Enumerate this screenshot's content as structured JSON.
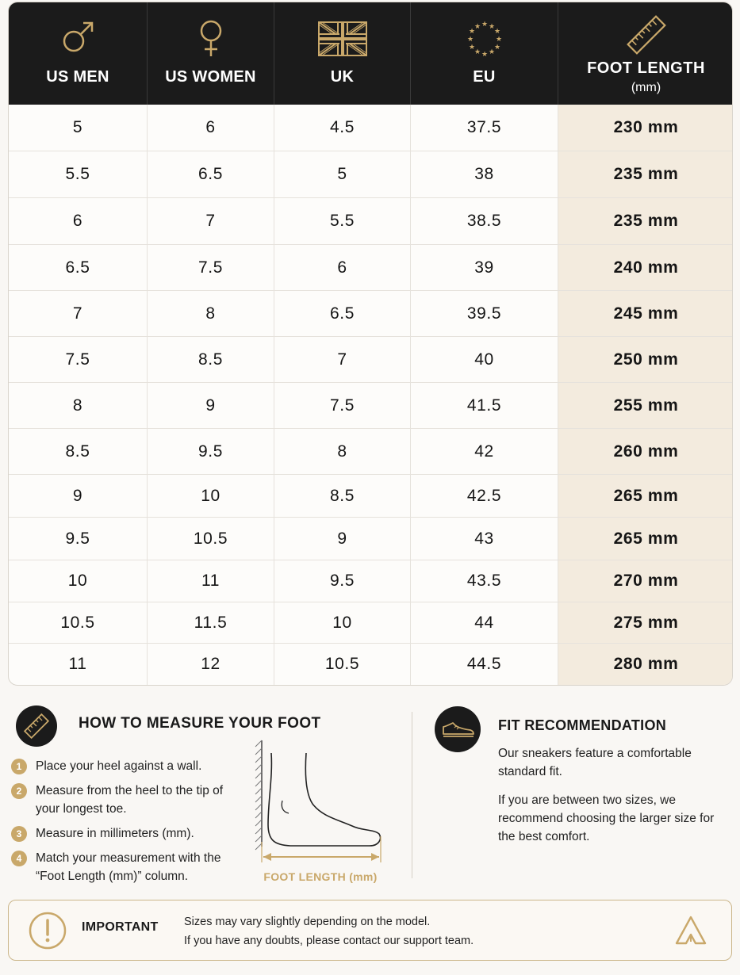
{
  "table": {
    "headers": [
      {
        "label": "US MEN",
        "icon": "male-symbol-icon"
      },
      {
        "label": "US WOMEN",
        "icon": "female-symbol-icon"
      },
      {
        "label": "UK",
        "icon": "uk-flag-icon"
      },
      {
        "label": "EU",
        "icon": "eu-flag-icon"
      },
      {
        "label": "FOOT LENGTH",
        "sub": "(mm)",
        "icon": "ruler-icon"
      }
    ],
    "rows": [
      [
        "5",
        "6",
        "4.5",
        "37.5",
        "230 mm"
      ],
      [
        "5.5",
        "6.5",
        "5",
        "38",
        "235 mm"
      ],
      [
        "6",
        "7",
        "5.5",
        "38.5",
        "235 mm"
      ],
      [
        "6.5",
        "7.5",
        "6",
        "39",
        "240 mm"
      ],
      [
        "7",
        "8",
        "6.5",
        "39.5",
        "245 mm"
      ],
      [
        "7.5",
        "8.5",
        "7",
        "40",
        "250 mm"
      ],
      [
        "8",
        "9",
        "7.5",
        "41.5",
        "255 mm"
      ],
      [
        "8.5",
        "9.5",
        "8",
        "42",
        "260 mm"
      ],
      [
        "9",
        "10",
        "8.5",
        "42.5",
        "265 mm"
      ],
      [
        "9.5",
        "10.5",
        "9",
        "43",
        "265 mm"
      ],
      [
        "10",
        "11",
        "9.5",
        "43.5",
        "270 mm"
      ],
      [
        "10.5",
        "11.5",
        "10",
        "44",
        "275 mm"
      ],
      [
        "11",
        "12",
        "10.5",
        "44.5",
        "280 mm"
      ]
    ]
  },
  "measure": {
    "title": "HOW TO MEASURE YOUR FOOT",
    "steps": [
      {
        "num": "1",
        "text": "Place your heel against a wall."
      },
      {
        "num": "2",
        "text": "Measure from the heel to the tip of your longest toe."
      },
      {
        "num": "3",
        "text": "Measure in millimeters (mm)."
      },
      {
        "num": "4",
        "text": "Match your measurement with the “Foot Length (mm)” column."
      }
    ],
    "diagram_caption": "FOOT LENGTH (mm)"
  },
  "fit": {
    "title": "FIT RECOMMENDATION",
    "p1": "Our sneakers feature a comfortable standard fit.",
    "p2": "If you are between two sizes, we recommend choosing the larger size for the best comfort."
  },
  "important": {
    "label": "IMPORTANT",
    "line1": "Sizes may vary slightly depending on the model.",
    "line2": "If you have any doubts, please contact our support team."
  },
  "colors": {
    "accent_gold": "#c9a86a",
    "header_bg": "#1b1b1b",
    "highlight_column": "#f3ebde"
  }
}
